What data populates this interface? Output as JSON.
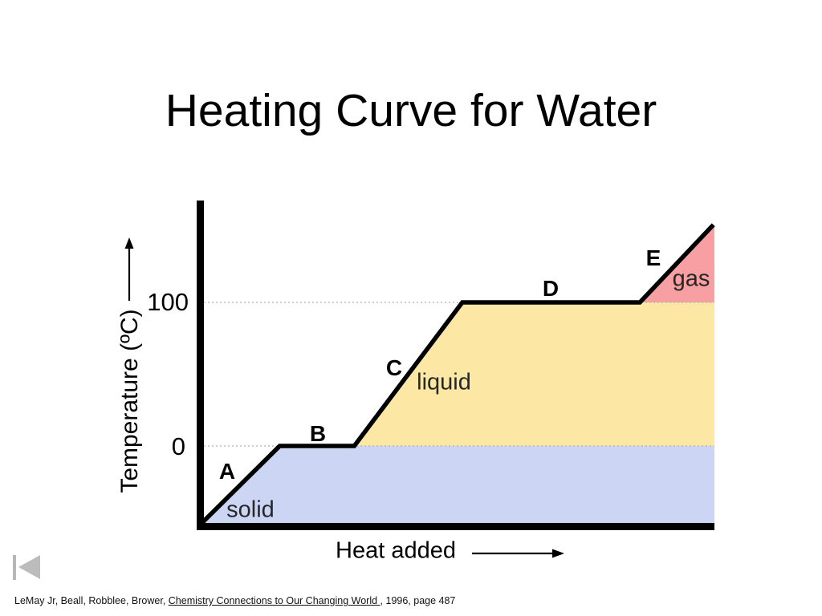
{
  "slide": {
    "title": "Heating Curve for Water",
    "citation": {
      "prefix": "LeMay Jr, Beall, Robblee, Brower, ",
      "book_title": "Chemistry Connections to Our Changing World ",
      "suffix": ", 1996, page 487"
    }
  },
  "chart_data": {
    "type": "line",
    "title": "Heating Curve for Water",
    "xlabel": "Heat added",
    "ylabel": "Temperature (ºC)",
    "yticks": [
      100,
      0
    ],
    "ytick_labels": {
      "t100": "100",
      "t0": "0"
    },
    "grid": "dotted horizontal gridlines at 0 and 100",
    "line_color": "#000000",
    "points": [
      {
        "heat": 0.0,
        "temp": -55
      },
      {
        "heat": 1.55,
        "temp": 0
      },
      {
        "heat": 3.0,
        "temp": 0
      },
      {
        "heat": 5.1,
        "temp": 100
      },
      {
        "heat": 8.55,
        "temp": 100
      },
      {
        "heat": 9.98,
        "temp": 154
      }
    ],
    "segment_labels": [
      "A",
      "B",
      "C",
      "D",
      "E"
    ],
    "regions": [
      {
        "label": "solid",
        "color": "#ccd6f4"
      },
      {
        "label": "liquid",
        "color": "#fce8a4"
      },
      {
        "label": "gas",
        "color": "#f79fa2"
      }
    ]
  }
}
